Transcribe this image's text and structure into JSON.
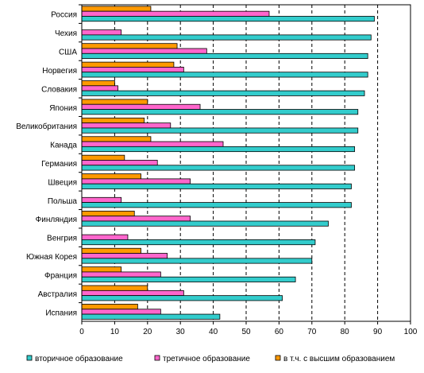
{
  "chart_data": {
    "type": "bar",
    "orientation": "horizontal",
    "categories": [
      "Россия",
      "Чехия",
      "США",
      "Норвегия",
      "Словакия",
      "Япония",
      "Великобритания",
      "Канада",
      "Германия",
      "Швеция",
      "Польша",
      "Финляндия",
      "Венгрия",
      "Южная Корея",
      "Франция",
      "Австралия",
      "Испания"
    ],
    "series": [
      {
        "name": "в т.ч. с высшим образованием",
        "color": "#FF9900",
        "values": [
          21,
          null,
          29,
          28,
          10,
          20,
          19,
          21,
          13,
          18,
          null,
          16,
          null,
          18,
          12,
          20,
          17
        ]
      },
      {
        "name": "третичное образование",
        "color": "#FF66CC",
        "values": [
          57,
          12,
          38,
          31,
          11,
          36,
          27,
          43,
          23,
          33,
          12,
          33,
          14,
          26,
          24,
          31,
          24
        ]
      },
      {
        "name": "вторичное образование",
        "color": "#33CCCC",
        "values": [
          89,
          88,
          87,
          87,
          86,
          84,
          84,
          83,
          83,
          82,
          82,
          75,
          71,
          70,
          65,
          61,
          42
        ]
      }
    ],
    "xlim": [
      0,
      100
    ],
    "x_ticks": [
      "0",
      "10",
      "20",
      "30",
      "40",
      "50",
      "60",
      "70",
      "80",
      "90",
      "100"
    ],
    "legend_order": [
      2,
      1,
      0
    ],
    "legend_position": "bottom",
    "grid": "vertical dashed",
    "title": "",
    "xlabel": "",
    "ylabel": ""
  }
}
